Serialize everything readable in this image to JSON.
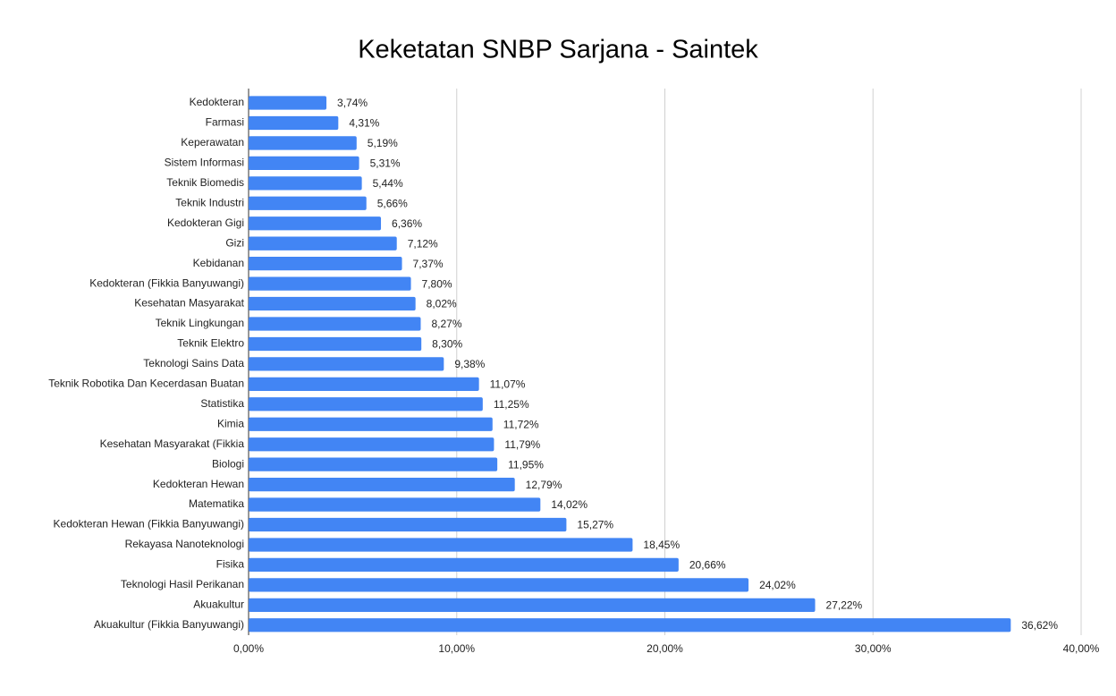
{
  "chart_data": {
    "type": "bar",
    "orientation": "horizontal",
    "title": "Keketatan SNBP Sarjana - Saintek",
    "categories": [
      "Kedokteran",
      "Farmasi",
      "Keperawatan",
      "Sistem Informasi",
      "Teknik Biomedis",
      "Teknik Industri",
      "Kedokteran Gigi",
      "Gizi",
      "Kebidanan",
      "Kedokteran (Fikkia Banyuwangi)",
      "Kesehatan Masyarakat",
      "Teknik Lingkungan",
      "Teknik Elektro",
      "Teknologi Sains Data",
      "Teknik Robotika Dan Kecerdasan Buatan",
      "Statistika",
      "Kimia",
      "Kesehatan Masyarakat (Fikkia",
      "Biologi",
      "Kedokteran Hewan",
      "Matematika",
      "Kedokteran Hewan (Fikkia Banyuwangi)",
      "Rekayasa Nanoteknologi",
      "Fisika",
      "Teknologi Hasil Perikanan",
      "Akuakultur",
      "Akuakultur (Fikkia Banyuwangi)"
    ],
    "values": [
      3.74,
      4.31,
      5.19,
      5.31,
      5.44,
      5.66,
      6.36,
      7.12,
      7.37,
      7.8,
      8.02,
      8.27,
      8.3,
      9.38,
      11.07,
      11.25,
      11.72,
      11.79,
      11.95,
      12.79,
      14.02,
      15.27,
      18.45,
      20.66,
      24.02,
      27.22,
      36.62
    ],
    "value_labels": [
      "3,74%",
      "4,31%",
      "5,19%",
      "5,31%",
      "5,44%",
      "5,66%",
      "6,36%",
      "7,12%",
      "7,37%",
      "7,80%",
      "8,02%",
      "8,27%",
      "8,30%",
      "9,38%",
      "11,07%",
      "11,25%",
      "11,72%",
      "11,79%",
      "11,95%",
      "12,79%",
      "14,02%",
      "15,27%",
      "18,45%",
      "20,66%",
      "24,02%",
      "27,22%",
      "36,62%"
    ],
    "color": "#4285f4",
    "xlim": [
      0,
      40
    ],
    "xticks": [
      {
        "value": 0,
        "label": "0,00%"
      },
      {
        "value": 10,
        "label": "10,00%"
      },
      {
        "value": 20,
        "label": "20,00%"
      },
      {
        "value": 30,
        "label": "30,00%"
      },
      {
        "value": 40,
        "label": "40,00%"
      }
    ],
    "grid": true
  }
}
